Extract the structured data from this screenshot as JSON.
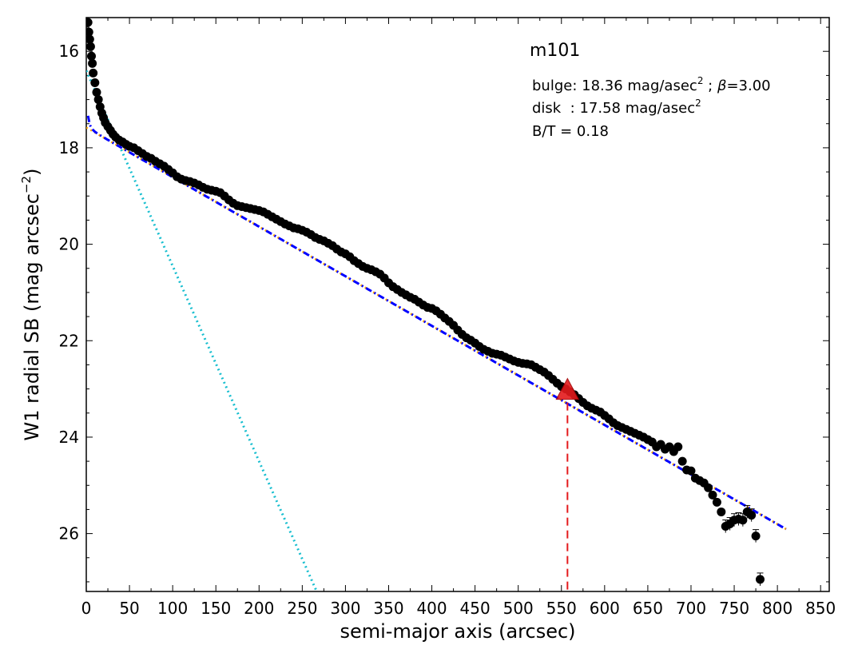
{
  "chart_data": {
    "type": "scatter",
    "title": "m101",
    "xlabel": "semi-major axis (arcsec)",
    "ylabel_text": "W1 radial SB (mag arcsec",
    "ylabel_exp": "−2",
    "ylabel_close": ")",
    "xlim": [
      0,
      860
    ],
    "ylim": [
      27.2,
      15.3
    ],
    "y_inverted": true,
    "x_ticks": [
      0,
      50,
      100,
      150,
      200,
      250,
      300,
      350,
      400,
      450,
      500,
      550,
      600,
      650,
      700,
      750,
      800,
      850
    ],
    "y_ticks": [
      16,
      18,
      20,
      22,
      24,
      26
    ],
    "annotations": {
      "bulge_prefix": "bulge: 18.36 mag/asec",
      "bulge_sup": "2",
      "bulge_sep": " ; ",
      "beta_symbol": "β",
      "beta_value": "=3.00",
      "disk_prefix": "disk  : 17.58 mag/asec",
      "disk_sup": "2",
      "bt": "B/T = 0.18"
    },
    "fit": {
      "disk_mu0": 17.58,
      "disk_slope": 0.01028,
      "bulge_mu0": 16.4,
      "bulge_beta": 0.01615,
      "x_max": 810
    },
    "marker": {
      "x": 557,
      "y": 23.05,
      "color": "#e41a1c"
    },
    "vline": {
      "x": 557,
      "color": "#e41a1c"
    },
    "series": [
      {
        "marker_color": "#000000",
        "points": [
          [
            2,
            15.4
          ],
          [
            3,
            15.6
          ],
          [
            4,
            15.75
          ],
          [
            5,
            15.9
          ],
          [
            6,
            16.1
          ],
          [
            7,
            16.25
          ],
          [
            8,
            16.45
          ],
          [
            10,
            16.65
          ],
          [
            12,
            16.85
          ],
          [
            14,
            17.0
          ],
          [
            16,
            17.15
          ],
          [
            18,
            17.28
          ],
          [
            20,
            17.38
          ],
          [
            22,
            17.48
          ],
          [
            25,
            17.56
          ],
          [
            28,
            17.64
          ],
          [
            31,
            17.72
          ],
          [
            34,
            17.78
          ],
          [
            38,
            17.84
          ],
          [
            42,
            17.88
          ],
          [
            46,
            17.93
          ],
          [
            50,
            17.97
          ],
          [
            55,
            18.0
          ],
          [
            60,
            18.06
          ],
          [
            65,
            18.12
          ],
          [
            70,
            18.18
          ],
          [
            75,
            18.22
          ],
          [
            80,
            18.28
          ],
          [
            85,
            18.33
          ],
          [
            90,
            18.38
          ],
          [
            95,
            18.45
          ],
          [
            100,
            18.52
          ],
          [
            105,
            18.6
          ],
          [
            110,
            18.65
          ],
          [
            115,
            18.68
          ],
          [
            120,
            18.7
          ],
          [
            125,
            18.73
          ],
          [
            130,
            18.77
          ],
          [
            135,
            18.82
          ],
          [
            140,
            18.86
          ],
          [
            145,
            18.88
          ],
          [
            150,
            18.9
          ],
          [
            155,
            18.93
          ],
          [
            160,
            19.0
          ],
          [
            165,
            19.08
          ],
          [
            170,
            19.15
          ],
          [
            175,
            19.2
          ],
          [
            180,
            19.22
          ],
          [
            185,
            19.24
          ],
          [
            190,
            19.26
          ],
          [
            195,
            19.28
          ],
          [
            200,
            19.3
          ],
          [
            205,
            19.33
          ],
          [
            210,
            19.38
          ],
          [
            215,
            19.43
          ],
          [
            220,
            19.48
          ],
          [
            225,
            19.53
          ],
          [
            230,
            19.58
          ],
          [
            235,
            19.62
          ],
          [
            240,
            19.66
          ],
          [
            245,
            19.68
          ],
          [
            250,
            19.71
          ],
          [
            255,
            19.75
          ],
          [
            260,
            19.8
          ],
          [
            265,
            19.86
          ],
          [
            270,
            19.9
          ],
          [
            275,
            19.93
          ],
          [
            280,
            19.98
          ],
          [
            285,
            20.03
          ],
          [
            290,
            20.1
          ],
          [
            295,
            20.16
          ],
          [
            300,
            20.2
          ],
          [
            305,
            20.26
          ],
          [
            310,
            20.34
          ],
          [
            315,
            20.4
          ],
          [
            320,
            20.46
          ],
          [
            325,
            20.5
          ],
          [
            330,
            20.53
          ],
          [
            335,
            20.57
          ],
          [
            340,
            20.62
          ],
          [
            345,
            20.7
          ],
          [
            350,
            20.8
          ],
          [
            355,
            20.88
          ],
          [
            360,
            20.94
          ],
          [
            365,
            21.0
          ],
          [
            370,
            21.05
          ],
          [
            375,
            21.1
          ],
          [
            380,
            21.14
          ],
          [
            385,
            21.2
          ],
          [
            390,
            21.26
          ],
          [
            395,
            21.31
          ],
          [
            400,
            21.33
          ],
          [
            405,
            21.38
          ],
          [
            410,
            21.45
          ],
          [
            415,
            21.53
          ],
          [
            420,
            21.6
          ],
          [
            425,
            21.68
          ],
          [
            430,
            21.78
          ],
          [
            435,
            21.87
          ],
          [
            440,
            21.94
          ],
          [
            445,
            21.99
          ],
          [
            450,
            22.05
          ],
          [
            455,
            22.12
          ],
          [
            460,
            22.18
          ],
          [
            465,
            22.22
          ],
          [
            470,
            22.26
          ],
          [
            475,
            22.28
          ],
          [
            480,
            22.3
          ],
          [
            485,
            22.34
          ],
          [
            490,
            22.38
          ],
          [
            495,
            22.42
          ],
          [
            500,
            22.45
          ],
          [
            505,
            22.47
          ],
          [
            510,
            22.48
          ],
          [
            515,
            22.5
          ],
          [
            520,
            22.55
          ],
          [
            525,
            22.6
          ],
          [
            530,
            22.65
          ],
          [
            535,
            22.72
          ],
          [
            540,
            22.8
          ],
          [
            545,
            22.88
          ],
          [
            550,
            22.95
          ],
          [
            555,
            23.0
          ],
          [
            560,
            23.06
          ],
          [
            565,
            23.12
          ],
          [
            570,
            23.2
          ],
          [
            575,
            23.28
          ],
          [
            580,
            23.35
          ],
          [
            585,
            23.4
          ],
          [
            590,
            23.44
          ],
          [
            595,
            23.48
          ],
          [
            600,
            23.55
          ],
          [
            605,
            23.62
          ],
          [
            610,
            23.7
          ],
          [
            615,
            23.76
          ],
          [
            620,
            23.8
          ],
          [
            625,
            23.84
          ],
          [
            630,
            23.88
          ],
          [
            635,
            23.92
          ],
          [
            640,
            23.96
          ],
          [
            645,
            24.0
          ],
          [
            650,
            24.05
          ],
          [
            655,
            24.1
          ],
          [
            660,
            24.2
          ],
          [
            665,
            24.15
          ],
          [
            670,
            24.25
          ],
          [
            675,
            24.2
          ],
          [
            680,
            24.3
          ],
          [
            685,
            24.2
          ],
          [
            690,
            24.5
          ],
          [
            695,
            24.68
          ],
          [
            700,
            24.7
          ],
          [
            705,
            24.85
          ],
          [
            710,
            24.9
          ],
          [
            715,
            24.95
          ],
          [
            720,
            25.05
          ],
          [
            725,
            25.2
          ],
          [
            730,
            25.35
          ],
          [
            735,
            25.55
          ],
          [
            740,
            25.85
          ],
          [
            745,
            25.8
          ],
          [
            750,
            25.72
          ],
          [
            755,
            25.7
          ],
          [
            760,
            25.72
          ],
          [
            765,
            25.55
          ],
          [
            770,
            25.62
          ],
          [
            775,
            26.05
          ],
          [
            780,
            26.95
          ]
        ]
      }
    ]
  }
}
